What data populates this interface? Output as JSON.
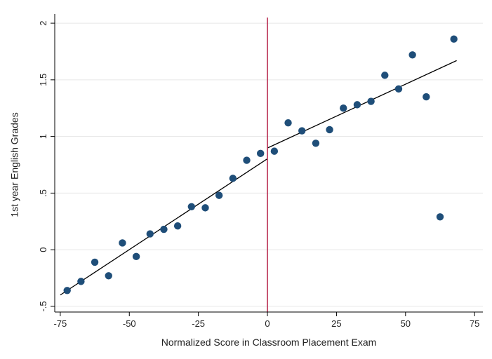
{
  "chart_data": {
    "type": "scatter",
    "title": "",
    "xlabel": "Normalized Score in Classroom Placement Exam",
    "ylabel": "1st year English Grades",
    "xlim": [
      -77,
      78
    ],
    "ylim": [
      -0.55,
      2.05
    ],
    "xticks": [
      {
        "value": -75,
        "label": "-75"
      },
      {
        "value": -50,
        "label": "-50"
      },
      {
        "value": -25,
        "label": "-25"
      },
      {
        "value": 0,
        "label": "0"
      },
      {
        "value": 25,
        "label": "25"
      },
      {
        "value": 50,
        "label": "50"
      },
      {
        "value": 75,
        "label": "75"
      }
    ],
    "yticks": [
      {
        "value": -0.5,
        "label": "-.5"
      },
      {
        "value": 0,
        "label": "0"
      },
      {
        "value": 0.5,
        "label": ".5"
      },
      {
        "value": 1,
        "label": "1"
      },
      {
        "value": 1.5,
        "label": "1.5"
      },
      {
        "value": 2,
        "label": "2"
      }
    ],
    "grid": true,
    "points": [
      {
        "x": -72.5,
        "y": -0.36
      },
      {
        "x": -67.5,
        "y": -0.28
      },
      {
        "x": -62.5,
        "y": -0.11
      },
      {
        "x": -57.5,
        "y": -0.23
      },
      {
        "x": -52.5,
        "y": 0.06
      },
      {
        "x": -47.5,
        "y": -0.06
      },
      {
        "x": -42.5,
        "y": 0.14
      },
      {
        "x": -37.5,
        "y": 0.18
      },
      {
        "x": -32.5,
        "y": 0.21
      },
      {
        "x": -27.5,
        "y": 0.38
      },
      {
        "x": -22.5,
        "y": 0.37
      },
      {
        "x": -17.5,
        "y": 0.48
      },
      {
        "x": -12.5,
        "y": 0.63
      },
      {
        "x": -7.5,
        "y": 0.79
      },
      {
        "x": -2.5,
        "y": 0.85
      },
      {
        "x": 2.5,
        "y": 0.87
      },
      {
        "x": 7.5,
        "y": 1.12
      },
      {
        "x": 12.5,
        "y": 1.05
      },
      {
        "x": 17.5,
        "y": 0.94
      },
      {
        "x": 22.5,
        "y": 1.06
      },
      {
        "x": 27.5,
        "y": 1.25
      },
      {
        "x": 32.5,
        "y": 1.28
      },
      {
        "x": 37.5,
        "y": 1.31
      },
      {
        "x": 42.5,
        "y": 1.54
      },
      {
        "x": 47.5,
        "y": 1.42
      },
      {
        "x": 52.5,
        "y": 1.72
      },
      {
        "x": 57.5,
        "y": 1.35
      },
      {
        "x": 62.5,
        "y": 0.29
      },
      {
        "x": 67.5,
        "y": 1.86
      }
    ],
    "fit_lines": [
      {
        "x1": -75,
        "y1": -0.4,
        "x2": -0.2,
        "y2": 0.8
      },
      {
        "x1": 0.2,
        "y1": 0.9,
        "x2": 68.5,
        "y2": 1.67
      }
    ],
    "cutoff_x": 0,
    "colors": {
      "point": "#1f4e79",
      "fit_line": "#000000",
      "cutoff_line": "#b0103a",
      "grid": "#e6e6e6",
      "axis": "#000000"
    }
  }
}
